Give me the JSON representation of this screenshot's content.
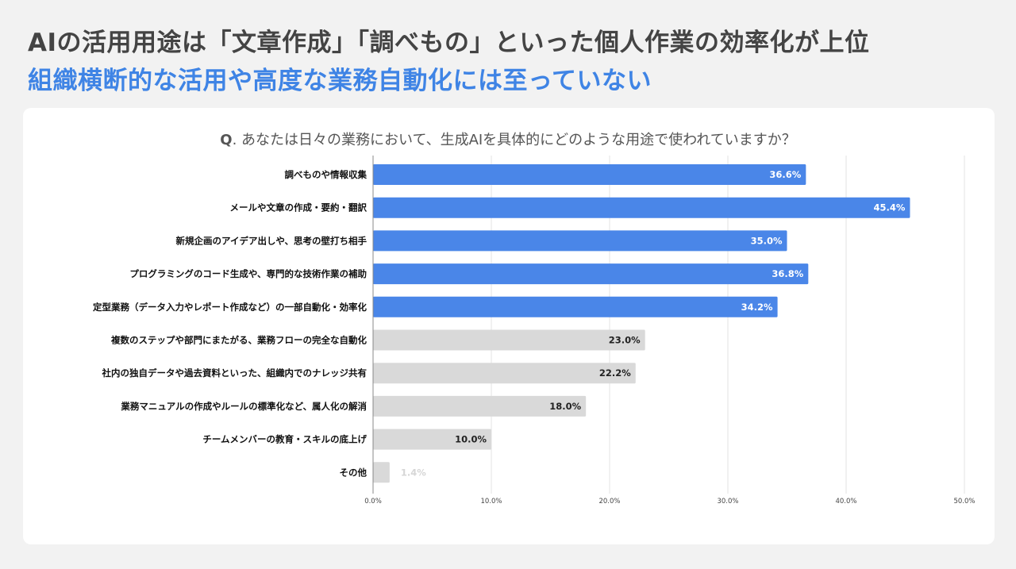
{
  "header": {
    "headline": "AIの活用用途は「文章作成」「調べもの」といった個人作業の効率化が上位",
    "subline": "組織横断的な活用や高度な業務自動化には至っていない"
  },
  "question": {
    "prefix": "Q",
    "text": ". あなたは日々の業務において、生成AIを具体的にどのような用途で使われていますか？"
  },
  "colors": {
    "highlight": "#4a86e8",
    "muted": "#d9d9d9",
    "highlight_label": "#ffffff",
    "muted_label": "#222222",
    "faint_label": "#d6d6d6",
    "grid": "#e3e3e3"
  },
  "chart_data": {
    "type": "bar",
    "orientation": "horizontal",
    "title": "Q. あなたは日々の業務において、生成AIを具体的にどのような用途で使われていますか？",
    "xlabel": "",
    "ylabel": "",
    "xlim": [
      0,
      50
    ],
    "grid": true,
    "categories": [
      "調べものや情報収集",
      "メールや文章の作成・要約・翻訳",
      "新規企画のアイデア出しや、思考の壁打ち相手",
      "プログラミングのコード生成や、専門的な技術作業の補助",
      "定型業務（データ入力やレポート作成など）の一部自動化・効率化",
      "複数のステップや部門にまたがる、業務フローの完全な自動化",
      "社内の独自データや過去資料といった、組織内でのナレッジ共有",
      "業務マニュアルの作成やルールの標準化など、属人化の解消",
      "チームメンバーの教育・スキルの底上げ",
      "その他"
    ],
    "values": [
      36.6,
      45.4,
      35.0,
      36.8,
      34.2,
      23.0,
      22.2,
      18.0,
      10.0,
      1.4
    ],
    "value_labels": [
      "36.6%",
      "45.4%",
      "35.0%",
      "36.8%",
      "34.2%",
      "23.0%",
      "22.2%",
      "18.0%",
      "10.0%",
      "1.4%"
    ],
    "highlighted": [
      true,
      true,
      true,
      true,
      true,
      false,
      false,
      false,
      false,
      false
    ],
    "x_ticks": [
      0,
      10,
      20,
      30,
      40,
      50
    ],
    "x_tick_labels": [
      "0.0%",
      "10.0%",
      "20.0%",
      "30.0%",
      "40.0%",
      "50.0%"
    ]
  }
}
